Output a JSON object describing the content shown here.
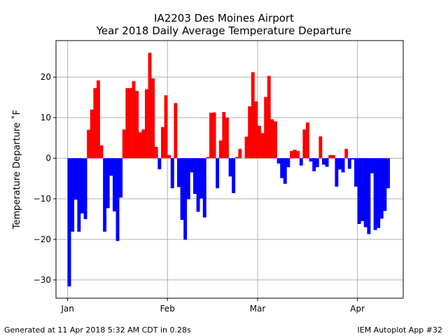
{
  "title_line1": "IA2203 Des Moines Airport",
  "title_line2": "Year 2018 Daily Average Temperature Departure",
  "footer_left": "Generated at 11 Apr 2018 5:32 AM CDT in 0.28s",
  "footer_right": "IEM Autoplot App #32",
  "colors": {
    "positive": "#ff0000",
    "negative": "#0000ff",
    "grid": "#b0b0b0"
  },
  "chart_data": {
    "type": "bar",
    "title": "IA2203 Des Moines Airport\nYear 2018 Daily Average Temperature Departure",
    "ylabel": "Temperature Departure ˚F",
    "xlabel": "",
    "ylim": [
      -34.5,
      29
    ],
    "yticks": [
      -30,
      -20,
      -10,
      0,
      10,
      20
    ],
    "xticks": [
      {
        "label": "Jan",
        "day": 0
      },
      {
        "label": "Feb",
        "day": 31
      },
      {
        "label": "Mar",
        "day": 59
      },
      {
        "label": "Apr",
        "day": 90
      }
    ],
    "grid": true,
    "start_date": "2018-01-01",
    "values": [
      -31.6,
      -18.1,
      -10.2,
      -18.1,
      -13.6,
      -15.0,
      7.0,
      12.0,
      17.3,
      19.2,
      3.2,
      -18.1,
      -12.3,
      -4.3,
      -13.1,
      -20.4,
      -9.7,
      7.1,
      17.3,
      17.3,
      19.0,
      16.6,
      6.4,
      7.1,
      17.0,
      26.0,
      19.7,
      2.8,
      -2.7,
      7.7,
      15.5,
      0.8,
      -7.4,
      13.6,
      -7.1,
      -15.2,
      -20.1,
      -10.1,
      -3.5,
      -8.8,
      -13.2,
      -9.9,
      -14.6,
      0.3,
      11.2,
      11.3,
      -7.4,
      4.4,
      11.4,
      10.0,
      -4.5,
      -8.6,
      0.3,
      2.3,
      0.0,
      5.3,
      12.8,
      21.2,
      14.0,
      8.0,
      6.2,
      15.1,
      20.3,
      9.6,
      9.1,
      -1.3,
      -4.9,
      -6.3,
      -2.2,
      1.8,
      2.1,
      1.8,
      -1.8,
      7.1,
      8.8,
      -0.8,
      -3.2,
      -2.2,
      5.4,
      -1.6,
      -2.1,
      0.8,
      0.8,
      -7.0,
      -2.8,
      -3.5,
      2.3,
      -2.6,
      -0.3,
      -7.0,
      -16.2,
      -15.5,
      -17.0,
      -18.7,
      -3.7,
      -17.7,
      -17.2,
      -14.9,
      -13.0,
      -7.4
    ]
  }
}
